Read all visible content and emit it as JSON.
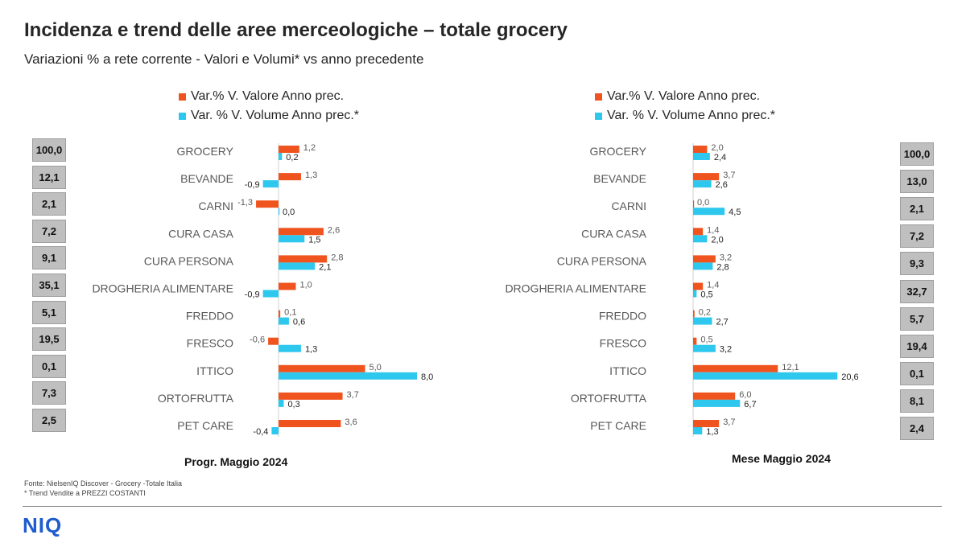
{
  "title": "Incidenza e trend delle aree merceologiche – totale grocery",
  "subtitle": "Variazioni  % a rete corrente - Valori  e Volumi*  vs anno precedente",
  "colors": {
    "valore": "#f0541e",
    "volume": "#2ec7ee",
    "box": "#bfbfbf"
  },
  "source": {
    "line1": "Fonte: NielsenIQ Discover  - Grocery -Totale Italia",
    "line2": "* Trend Vendite a PREZZI COSTANTI"
  },
  "logo": "NIQ",
  "chart_data": [
    {
      "type": "bar",
      "orientation": "horizontal",
      "title": "Progr. Maggio 2024",
      "categories": [
        "GROCERY",
        "BEVANDE",
        "CARNI",
        "CURA CASA",
        "CURA PERSONA",
        "DROGHERIA ALIMENTARE",
        "FREDDO",
        "FRESCO",
        "ITTICO",
        "ORTOFRUTTA",
        "PET CARE"
      ],
      "series": [
        {
          "name": "Var.% V. Valore Anno prec.",
          "values": [
            1.2,
            1.3,
            -1.3,
            2.6,
            2.8,
            1.0,
            0.1,
            -0.6,
            5.0,
            3.7,
            3.6
          ],
          "labels": [
            "1,2",
            "1,3",
            "-1,3",
            "2,6",
            "2,8",
            "1,0",
            "0,1",
            "-0,6",
            "5,0",
            "3,7",
            "3,6"
          ]
        },
        {
          "name": "Var. % V. Volume Anno prec.*",
          "values": [
            0.2,
            -0.9,
            0.0,
            1.5,
            2.1,
            -0.9,
            0.6,
            1.3,
            8.0,
            0.3,
            -0.4
          ],
          "labels": [
            "0,2",
            "-0,9",
            "0,0",
            "1,5",
            "2,1",
            "-0,9",
            "0,6",
            "1,3",
            "8,0",
            "0,3",
            "-0,4"
          ]
        }
      ],
      "incidenza": [
        "100,0",
        "12,1",
        "2,1",
        "7,2",
        "9,1",
        "35,1",
        "5,1",
        "19,5",
        "0,1",
        "7,3",
        "2,5"
      ]
    },
    {
      "type": "bar",
      "orientation": "horizontal",
      "title": "Mese Maggio 2024",
      "categories": [
        "GROCERY",
        "BEVANDE",
        "CARNI",
        "CURA CASA",
        "CURA PERSONA",
        "DROGHERIA ALIMENTARE",
        "FREDDO",
        "FRESCO",
        "ITTICO",
        "ORTOFRUTTA",
        "PET CARE"
      ],
      "series": [
        {
          "name": "Var.% V. Valore Anno prec.",
          "values": [
            2.0,
            3.7,
            0.0,
            1.4,
            3.2,
            1.4,
            0.2,
            0.5,
            12.1,
            6.0,
            3.7
          ],
          "labels": [
            "2,0",
            "3,7",
            "0,0",
            "1,4",
            "3,2",
            "1,4",
            "0,2",
            "0,5",
            "12,1",
            "6,0",
            "3,7"
          ]
        },
        {
          "name": "Var. % V. Volume Anno prec.*",
          "values": [
            2.4,
            2.6,
            4.5,
            2.0,
            2.8,
            0.5,
            2.7,
            3.2,
            20.6,
            6.7,
            1.3
          ],
          "labels": [
            "2,4",
            "2,6",
            "4,5",
            "2,0",
            "2,8",
            "0,5",
            "2,7",
            "3,2",
            "20,6",
            "6,7",
            "1,3"
          ]
        }
      ],
      "incidenza": [
        "100,0",
        "13,0",
        "2,1",
        "7,2",
        "9,3",
        "32,7",
        "5,7",
        "19,4",
        "0,1",
        "8,1",
        "2,4"
      ]
    }
  ]
}
